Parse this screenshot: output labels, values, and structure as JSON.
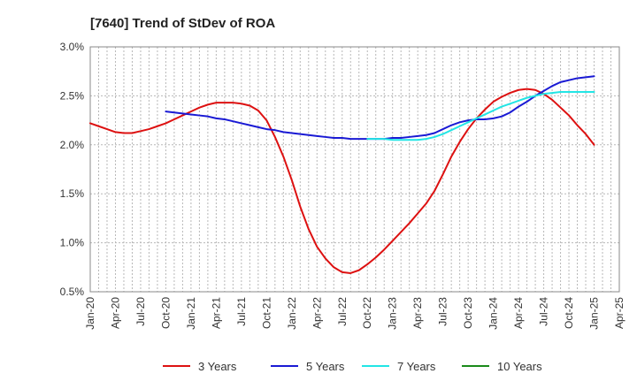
{
  "chart_data": {
    "type": "line",
    "title": "[7640]  Trend of StDev of ROA",
    "xlabel": "",
    "ylabel": "",
    "ylim": [
      0.5,
      3.0
    ],
    "y_ticks": [
      "0.5%",
      "1.0%",
      "1.5%",
      "2.0%",
      "2.5%",
      "3.0%"
    ],
    "y_tick_values": [
      0.5,
      1.0,
      1.5,
      2.0,
      2.5,
      3.0
    ],
    "x_ticks": [
      "Jan-20",
      "Apr-20",
      "Jul-20",
      "Oct-20",
      "Jan-21",
      "Apr-21",
      "Jul-21",
      "Oct-21",
      "Jan-22",
      "Apr-22",
      "Jul-22",
      "Oct-22",
      "Jan-23",
      "Apr-23",
      "Jul-23",
      "Oct-23",
      "Jan-24",
      "Apr-24",
      "Jul-24",
      "Oct-24",
      "Jan-25",
      "Apr-25"
    ],
    "grid": true,
    "legend_position": "bottom",
    "series": [
      {
        "name": "3 Years",
        "color": "#dd1111",
        "x": [
          "Jan-20",
          "Feb-20",
          "Mar-20",
          "Apr-20",
          "May-20",
          "Jun-20",
          "Jul-20",
          "Aug-20",
          "Sep-20",
          "Oct-20",
          "Nov-20",
          "Dec-20",
          "Jan-21",
          "Feb-21",
          "Mar-21",
          "Apr-21",
          "May-21",
          "Jun-21",
          "Jul-21",
          "Aug-21",
          "Sep-21",
          "Oct-21",
          "Nov-21",
          "Dec-21",
          "Jan-22",
          "Feb-22",
          "Mar-22",
          "Apr-22",
          "May-22",
          "Jun-22",
          "Jul-22",
          "Aug-22",
          "Sep-22",
          "Oct-22",
          "Nov-22",
          "Dec-22",
          "Jan-23",
          "Feb-23",
          "Mar-23",
          "Apr-23",
          "May-23",
          "Jun-23",
          "Jul-23",
          "Aug-23",
          "Sep-23",
          "Oct-23",
          "Nov-23",
          "Dec-23",
          "Jan-24",
          "Feb-24",
          "Mar-24",
          "Apr-24",
          "May-24",
          "Jun-24",
          "Jul-24",
          "Aug-24",
          "Sep-24",
          "Oct-24",
          "Nov-24",
          "Dec-24",
          "Jan-25"
        ],
        "values": [
          2.22,
          2.19,
          2.16,
          2.13,
          2.12,
          2.12,
          2.14,
          2.16,
          2.19,
          2.22,
          2.26,
          2.3,
          2.34,
          2.38,
          2.41,
          2.43,
          2.43,
          2.43,
          2.42,
          2.4,
          2.35,
          2.25,
          2.08,
          1.88,
          1.64,
          1.37,
          1.14,
          0.96,
          0.84,
          0.75,
          0.7,
          0.69,
          0.72,
          0.78,
          0.85,
          0.93,
          1.02,
          1.11,
          1.2,
          1.3,
          1.4,
          1.53,
          1.7,
          1.88,
          2.03,
          2.16,
          2.27,
          2.36,
          2.44,
          2.49,
          2.53,
          2.56,
          2.57,
          2.56,
          2.52,
          2.46,
          2.38,
          2.3,
          2.2,
          2.11,
          2.0
        ]
      },
      {
        "name": "5 Years",
        "color": "#1a1ad4",
        "x": [
          "Oct-20",
          "Nov-20",
          "Dec-20",
          "Jan-21",
          "Feb-21",
          "Mar-21",
          "Apr-21",
          "May-21",
          "Jun-21",
          "Jul-21",
          "Aug-21",
          "Sep-21",
          "Oct-21",
          "Nov-21",
          "Dec-21",
          "Jan-22",
          "Feb-22",
          "Mar-22",
          "Apr-22",
          "May-22",
          "Jun-22",
          "Jul-22",
          "Aug-22",
          "Sep-22",
          "Oct-22",
          "Nov-22",
          "Dec-22",
          "Jan-23",
          "Feb-23",
          "Mar-23",
          "Apr-23",
          "May-23",
          "Jun-23",
          "Jul-23",
          "Aug-23",
          "Sep-23",
          "Oct-23",
          "Nov-23",
          "Dec-23",
          "Jan-24",
          "Feb-24",
          "Mar-24",
          "Apr-24",
          "May-24",
          "Jun-24",
          "Jul-24",
          "Aug-24",
          "Sep-24",
          "Oct-24",
          "Nov-24",
          "Dec-24",
          "Jan-25"
        ],
        "values": [
          2.34,
          2.33,
          2.32,
          2.31,
          2.3,
          2.29,
          2.27,
          2.26,
          2.24,
          2.22,
          2.2,
          2.18,
          2.16,
          2.15,
          2.13,
          2.12,
          2.11,
          2.1,
          2.09,
          2.08,
          2.07,
          2.07,
          2.06,
          2.06,
          2.06,
          2.06,
          2.06,
          2.07,
          2.07,
          2.08,
          2.09,
          2.1,
          2.12,
          2.16,
          2.2,
          2.23,
          2.25,
          2.26,
          2.26,
          2.27,
          2.29,
          2.33,
          2.39,
          2.44,
          2.5,
          2.55,
          2.6,
          2.64,
          2.66,
          2.68,
          2.69,
          2.7
        ]
      },
      {
        "name": "7 Years",
        "color": "#22e5e5",
        "x": [
          "Oct-22",
          "Nov-22",
          "Dec-22",
          "Jan-23",
          "Feb-23",
          "Mar-23",
          "Apr-23",
          "May-23",
          "Jun-23",
          "Jul-23",
          "Aug-23",
          "Sep-23",
          "Oct-23",
          "Nov-23",
          "Dec-23",
          "Jan-24",
          "Feb-24",
          "Mar-24",
          "Apr-24",
          "May-24",
          "Jun-24",
          "Jul-24",
          "Aug-24",
          "Sep-24",
          "Oct-24",
          "Nov-24",
          "Dec-24",
          "Jan-25"
        ],
        "values": [
          2.06,
          2.06,
          2.06,
          2.05,
          2.05,
          2.05,
          2.05,
          2.06,
          2.08,
          2.11,
          2.15,
          2.19,
          2.23,
          2.27,
          2.31,
          2.35,
          2.39,
          2.42,
          2.45,
          2.48,
          2.5,
          2.52,
          2.53,
          2.54,
          2.54,
          2.54,
          2.54,
          2.54
        ]
      },
      {
        "name": "10 Years",
        "color": "#1a8a1a",
        "x": [],
        "values": []
      }
    ]
  }
}
